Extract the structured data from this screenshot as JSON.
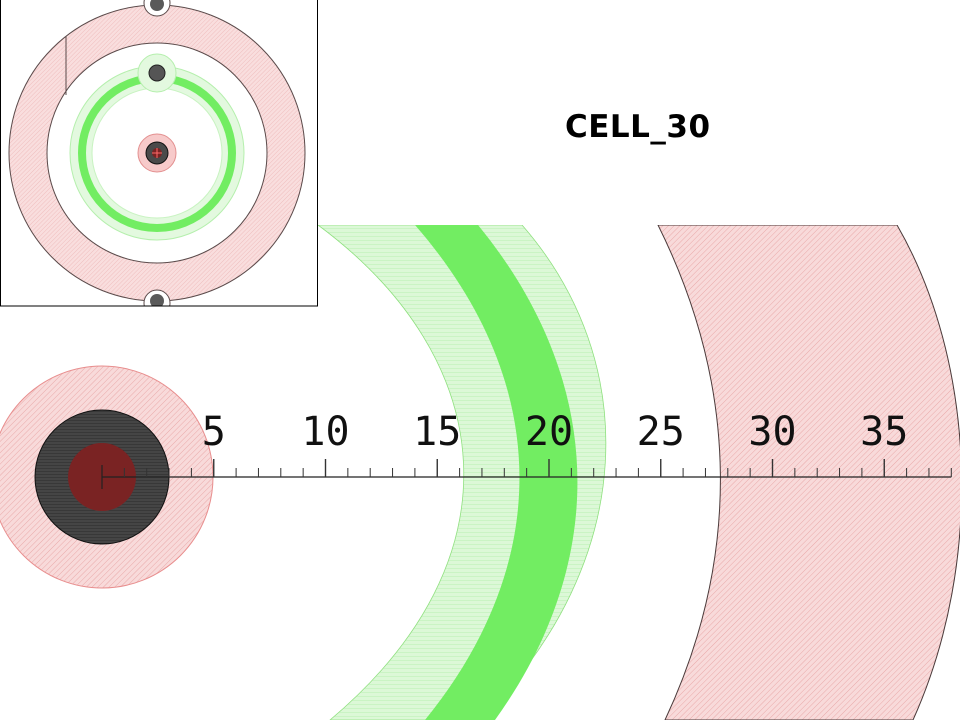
{
  "title": "CELL_30",
  "scale": {
    "labels": [
      "5",
      "10",
      "15",
      "20",
      "25",
      "30",
      "35"
    ],
    "values": [
      5,
      10,
      15,
      20,
      25,
      30,
      35
    ],
    "range": [
      0,
      38
    ],
    "minor_step": 1
  },
  "colors": {
    "outer_ring": "#f4cccc",
    "outer_ring_stroke": "#5a4040",
    "green_light": "#d6f7d2",
    "green_strong": "#72ed62",
    "core_dark": "#3b3b3b",
    "core_center": "#7a2020",
    "core_halo": "#f6c9c9"
  }
}
